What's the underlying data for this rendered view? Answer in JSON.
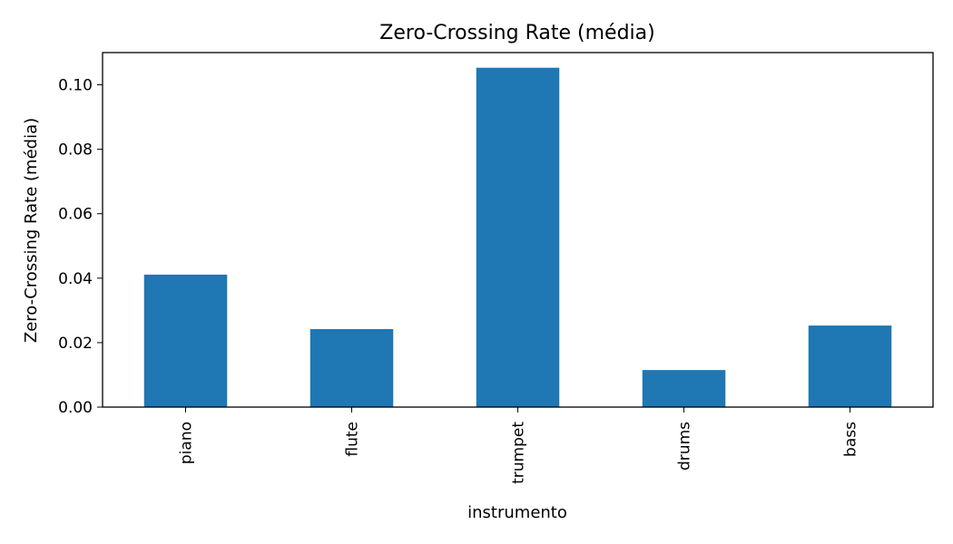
{
  "chart_data": {
    "type": "bar",
    "title": "Zero-Crossing Rate (média)",
    "xlabel": "instrumento",
    "ylabel": "Zero-Crossing Rate (média)",
    "categories": [
      "piano",
      "flute",
      "trumpet",
      "drums",
      "bass"
    ],
    "values": [
      0.0411,
      0.0242,
      0.1053,
      0.0115,
      0.0253
    ],
    "ylim": [
      0,
      0.11
    ],
    "yticks": [
      0.0,
      0.02,
      0.04,
      0.06,
      0.08,
      0.1
    ],
    "ytick_labels": [
      "0.00",
      "0.02",
      "0.04",
      "0.06",
      "0.08",
      "0.10"
    ],
    "grid": false,
    "legend": "none",
    "bar_color": "#1f77b4"
  }
}
